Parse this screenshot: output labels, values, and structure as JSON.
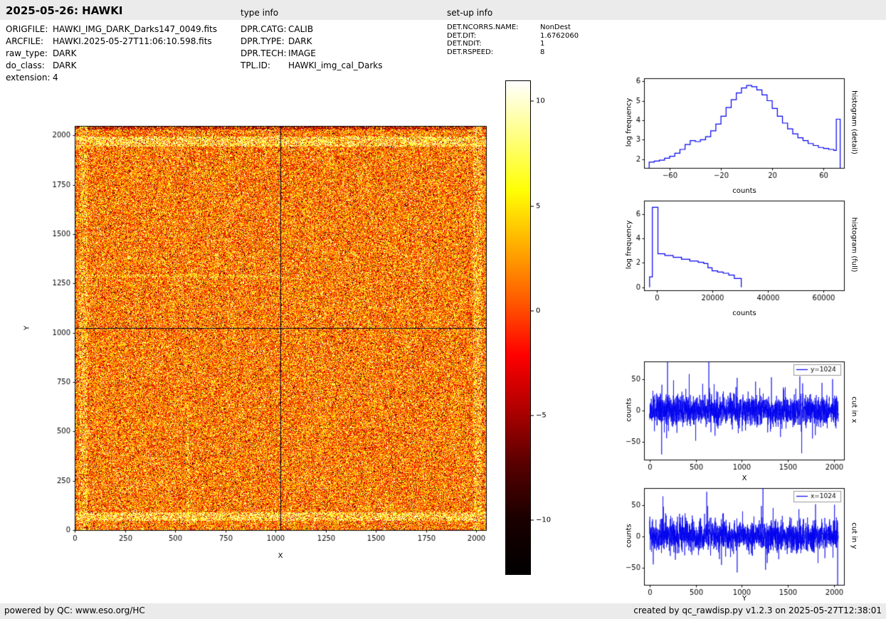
{
  "header": {
    "title": "2025-05-26: HAWKI",
    "type_info_label": "type info",
    "setup_info_label": "set-up info"
  },
  "file_info": {
    "rows": [
      {
        "label": "ORIGFILE:",
        "value": "HAWKI_IMG_DARK_Darks147_0049.fits"
      },
      {
        "label": "ARCFILE:",
        "value": "HAWKI.2025-05-27T11:06:10.598.fits"
      },
      {
        "label": "raw_type:",
        "value": "DARK"
      },
      {
        "label": "do_class:",
        "value": "DARK"
      },
      {
        "label": "extension:",
        "value": "4"
      }
    ]
  },
  "type_info": {
    "rows": [
      {
        "label": "DPR.CATG:",
        "value": "CALIB"
      },
      {
        "label": "DPR.TYPE:",
        "value": "DARK"
      },
      {
        "label": "DPR.TECH:",
        "value": "IMAGE"
      },
      {
        "label": "TPL.ID:",
        "value": "HAWKI_img_cal_Darks"
      }
    ]
  },
  "setup_info": {
    "rows": [
      {
        "label": "DET.NCORRS.NAME:",
        "value": "NonDest"
      },
      {
        "label": "DET.DIT:",
        "value": "1.6762060"
      },
      {
        "label": "DET.NDIT:",
        "value": "1"
      },
      {
        "label": "DET.RSPEED:",
        "value": "8"
      }
    ]
  },
  "footer": {
    "left": "powered by QC: www.eso.org/HC",
    "right": "created by qc_rawdisp.py v1.2.3 on 2025-05-27T12:38:01"
  },
  "colorbar": {
    "ticks": [
      10,
      5,
      0,
      -5,
      -10
    ],
    "vmin": -12.6,
    "vmax": 11,
    "stops": [
      "#ffffff",
      "#ffff82",
      "#ffff05",
      "#ffae00",
      "#ff5b00",
      "#ff0000",
      "#af0000",
      "#570000",
      "#1a0000",
      "#000000"
    ]
  },
  "chart_data": [
    {
      "id": "dark_frame",
      "type": "heatmap",
      "description": "2048x2048 raw dark frame, hot colormap noise with bright border rows and dark crosshair at 1024",
      "xlabel": "X",
      "ylabel": "Y",
      "xlim": [
        0,
        2048
      ],
      "ylim": [
        0,
        2048
      ],
      "x_ticks": [
        0,
        250,
        500,
        750,
        1000,
        1250,
        1500,
        1750,
        2000
      ],
      "y_ticks": [
        0,
        250,
        500,
        750,
        1000,
        1250,
        1500,
        1750,
        2000
      ],
      "crosshair_x": 1024,
      "crosshair_y": 1024,
      "vmin": -12.6,
      "vmax": 11,
      "noise_mean": 0.5,
      "noise_sigma": 4.2,
      "seed": 20250526
    },
    {
      "id": "hist_detail",
      "type": "step_histogram",
      "side_label": "histogram (detail)",
      "xlabel": "counts",
      "ylabel": "log frequency",
      "color": "#0000ee",
      "xlim": [
        -80,
        76
      ],
      "ylim": [
        1.55,
        6.15
      ],
      "x_ticks": [
        -60,
        -20,
        20,
        60
      ],
      "y_ticks": [
        2,
        3,
        4,
        5,
        6
      ],
      "edges": [
        -76,
        -72,
        -68,
        -64,
        -60,
        -56,
        -52,
        -48,
        -44,
        -40,
        -36,
        -32,
        -28,
        -24,
        -20,
        -16,
        -12,
        -8,
        -4,
        0,
        4,
        8,
        12,
        16,
        20,
        24,
        28,
        32,
        36,
        40,
        44,
        48,
        52,
        56,
        60,
        64,
        68,
        70,
        73
      ],
      "values": [
        1.85,
        1.9,
        1.95,
        2.05,
        2.15,
        2.3,
        2.5,
        2.75,
        2.95,
        2.9,
        3.0,
        3.15,
        3.45,
        3.8,
        4.2,
        4.65,
        5.05,
        5.4,
        5.65,
        5.78,
        5.72,
        5.55,
        5.3,
        5.0,
        4.6,
        4.2,
        3.85,
        3.55,
        3.3,
        3.1,
        2.95,
        2.8,
        2.7,
        2.6,
        2.55,
        2.5,
        2.45,
        4.05
      ]
    },
    {
      "id": "hist_full",
      "type": "step_histogram",
      "side_label": "histogram (full)",
      "xlabel": "counts",
      "ylabel": "log frequency",
      "color": "#0000ee",
      "baseline": 0,
      "xlim": [
        -4500,
        67500
      ],
      "ylim": [
        -0.25,
        7.1
      ],
      "x_ticks": [
        0,
        20000,
        40000,
        60000
      ],
      "y_ticks": [
        0,
        2,
        4,
        6
      ],
      "edges": [
        -2500,
        -1500,
        500,
        3000,
        6000,
        9000,
        12000,
        15000,
        17000,
        18500,
        20000,
        22000,
        24000,
        26000,
        28000,
        30500
      ],
      "values": [
        0.85,
        6.55,
        2.75,
        2.6,
        2.45,
        2.3,
        2.15,
        2.05,
        1.95,
        1.6,
        1.35,
        1.25,
        1.15,
        1.0,
        0.72
      ]
    },
    {
      "id": "cut_x",
      "type": "noise_line",
      "side_label": "cut in x",
      "legend": "y=1024",
      "xlabel": "X",
      "ylabel": "counts",
      "color": "#0000ee",
      "xlim": [
        -60,
        2110
      ],
      "ylim": [
        -78,
        78
      ],
      "x_ticks": [
        0,
        500,
        1000,
        1500,
        2000
      ],
      "y_ticks": [
        -50,
        0,
        50
      ],
      "n": 2048,
      "sigma": 12,
      "seed": 11,
      "spikes": [
        [
          195,
          95
        ],
        [
          260,
          48
        ],
        [
          430,
          58
        ],
        [
          500,
          -48
        ],
        [
          700,
          42
        ],
        [
          950,
          52
        ],
        [
          1150,
          46
        ],
        [
          1420,
          -42
        ],
        [
          1650,
          -68
        ],
        [
          1870,
          44
        ],
        [
          1985,
          50
        ]
      ]
    },
    {
      "id": "cut_y",
      "type": "noise_line",
      "side_label": "cut in y",
      "legend": "x=1024",
      "xlabel": "Y",
      "ylabel": "counts",
      "color": "#0000ee",
      "xlim": [
        -60,
        2110
      ],
      "ylim": [
        -78,
        78
      ],
      "x_ticks": [
        0,
        500,
        1000,
        1500,
        2000
      ],
      "y_ticks": [
        -50,
        0,
        50
      ],
      "n": 2048,
      "sigma": 12,
      "seed": 23,
      "spikes": [
        [
          40,
          -45
        ],
        [
          150,
          48
        ],
        [
          620,
          72
        ],
        [
          780,
          -46
        ],
        [
          950,
          -58
        ],
        [
          1230,
          80
        ],
        [
          1340,
          46
        ],
        [
          1620,
          44
        ],
        [
          1800,
          52
        ],
        [
          2040,
          -85
        ]
      ]
    }
  ]
}
